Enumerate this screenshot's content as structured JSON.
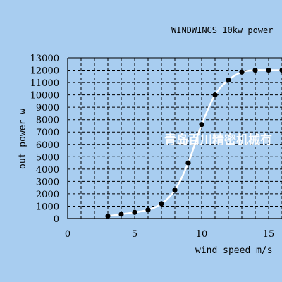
{
  "chart_data": {
    "type": "scatter",
    "title": "WINDWINGS 10kw power",
    "xlabel": "wind speed m/s",
    "ylabel": "out power w",
    "xlim": [
      0,
      16
    ],
    "ylim": [
      0,
      13000
    ],
    "x_ticks": [
      0,
      5,
      10,
      15
    ],
    "y_ticks": [
      0,
      1000,
      2000,
      3000,
      4000,
      5000,
      6000,
      7000,
      8000,
      9000,
      10000,
      11000,
      12000,
      13000
    ],
    "grid": true,
    "curve": "smooth",
    "series": [
      {
        "x": [
          3,
          4,
          5,
          6,
          7,
          8,
          9,
          10,
          11,
          12,
          13,
          14,
          15,
          16
        ],
        "y": [
          200,
          350,
          500,
          700,
          1200,
          2300,
          4500,
          7600,
          10000,
          11200,
          11850,
          12000,
          12000,
          12000
        ]
      }
    ],
    "watermark": "青岛百川精密机械有"
  },
  "colors": {
    "background": "#a8cdf0",
    "plot_background": "#a8cdf0",
    "grid": "#000000",
    "curve": "#ffffff",
    "marker": "#000000"
  }
}
